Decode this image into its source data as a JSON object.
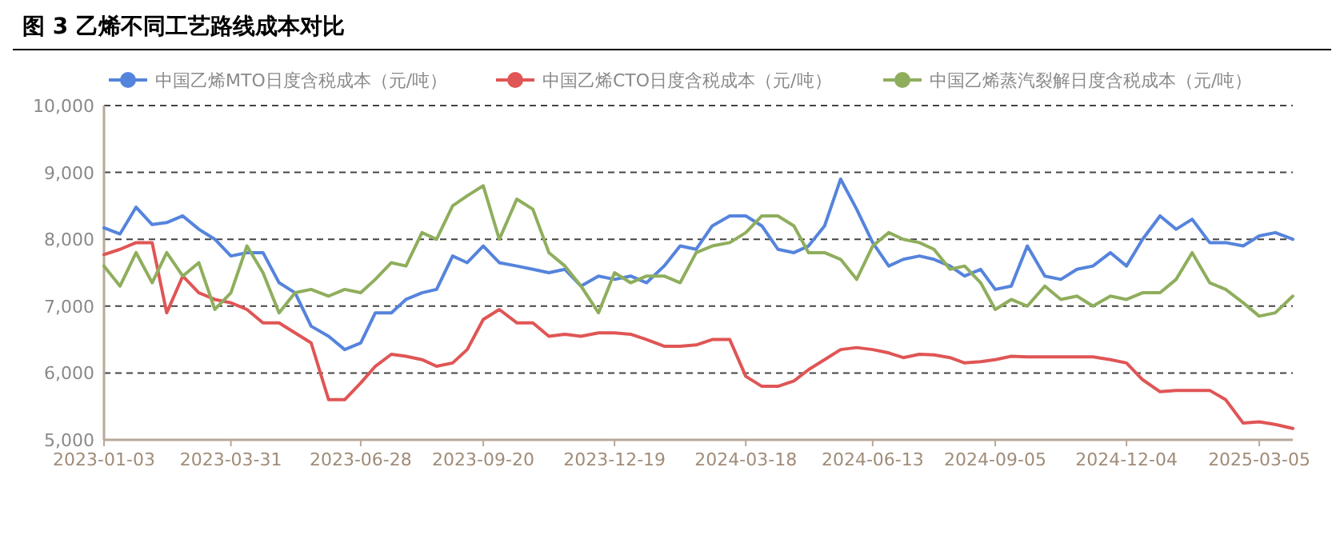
{
  "chart_data": {
    "type": "line",
    "title": "图 3  乙烯不同工艺路线成本对比",
    "x": [
      "2023-01-03",
      "2023-01-14",
      "2023-01-25",
      "2023-02-05",
      "2023-02-15",
      "2023-02-26",
      "2023-03-09",
      "2023-03-20",
      "2023-03-31",
      "2023-04-11",
      "2023-04-22",
      "2023-05-03",
      "2023-05-14",
      "2023-05-25",
      "2023-06-06",
      "2023-06-17",
      "2023-06-28",
      "2023-07-08",
      "2023-07-19",
      "2023-07-29",
      "2023-08-09",
      "2023-08-19",
      "2023-08-30",
      "2023-09-09",
      "2023-09-20",
      "2023-10-01",
      "2023-10-13",
      "2023-10-24",
      "2023-11-04",
      "2023-11-15",
      "2023-11-26",
      "2023-12-08",
      "2023-12-19",
      "2023-12-30",
      "2024-01-10",
      "2024-01-22",
      "2024-02-02",
      "2024-02-13",
      "2024-02-24",
      "2024-03-07",
      "2024-03-18",
      "2024-03-29",
      "2024-04-09",
      "2024-04-20",
      "2024-04-30",
      "2024-05-11",
      "2024-05-22",
      "2024-06-02",
      "2024-06-13",
      "2024-06-24",
      "2024-07-04",
      "2024-07-15",
      "2024-07-25",
      "2024-08-05",
      "2024-08-15",
      "2024-08-26",
      "2024-09-05",
      "2024-09-16",
      "2024-09-27",
      "2024-10-09",
      "2024-10-20",
      "2024-10-31",
      "2024-11-11",
      "2024-11-23",
      "2024-12-04",
      "2024-12-15",
      "2024-12-27",
      "2025-01-07",
      "2025-01-18",
      "2025-01-30",
      "2025-02-10",
      "2025-02-22",
      "2025-03-05",
      "2025-03-16",
      "2025-03-28"
    ],
    "series": [
      {
        "name": "中国乙烯MTO日度含税成本（元/吨）",
        "color": "#5584dc",
        "values": [
          8170,
          8080,
          8480,
          8220,
          8250,
          8350,
          8150,
          8000,
          7750,
          7800,
          7800,
          7350,
          7200,
          6700,
          6550,
          6350,
          6450,
          6900,
          6900,
          7100,
          7200,
          7250,
          7750,
          7650,
          7900,
          7650,
          7600,
          7550,
          7500,
          7550,
          7300,
          7450,
          7400,
          7450,
          7350,
          7600,
          7900,
          7850,
          8200,
          8350,
          8350,
          8200,
          7850,
          7800,
          7900,
          8200,
          8900,
          8450,
          7950,
          7600,
          7700,
          7750,
          7700,
          7600,
          7450,
          7550,
          7250,
          7300,
          7900,
          7450,
          7400,
          7550,
          7600,
          7800,
          7600,
          8000,
          8350,
          8150,
          8300,
          7950,
          7950,
          7900,
          8050,
          8100,
          8000
        ]
      },
      {
        "name": "中国乙烯CTO日度含税成本（元/吨）",
        "color": "#e05555",
        "values": [
          7770,
          7850,
          7950,
          7950,
          6900,
          7450,
          7200,
          7100,
          7050,
          6950,
          6750,
          6750,
          6600,
          6450,
          5600,
          5600,
          5850,
          6100,
          6280,
          6250,
          6200,
          6100,
          6150,
          6350,
          6800,
          6950,
          6750,
          6750,
          6550,
          6580,
          6550,
          6600,
          6600,
          6580,
          6500,
          6400,
          6400,
          6420,
          6500,
          6500,
          5950,
          5800,
          5800,
          5880,
          6050,
          6200,
          6350,
          6380,
          6350,
          6300,
          6230,
          6280,
          6270,
          6230,
          6150,
          6170,
          6200,
          6250,
          6240,
          6240,
          6240,
          6240,
          6240,
          6200,
          6150,
          5900,
          5720,
          5740,
          5740,
          5740,
          5600,
          5250,
          5270,
          5230,
          5170
        ]
      },
      {
        "name": "中国乙烯蒸汽裂解日度含税成本（元/吨）",
        "color": "#8fae5d",
        "values": [
          7600,
          7300,
          7800,
          7350,
          7800,
          7450,
          7650,
          6950,
          7200,
          7900,
          7500,
          6900,
          7200,
          7250,
          7150,
          7250,
          7200,
          7400,
          7650,
          7600,
          8100,
          8000,
          8500,
          8650,
          8800,
          8000,
          8600,
          8450,
          7800,
          7600,
          7300,
          6900,
          7500,
          7350,
          7450,
          7450,
          7350,
          7800,
          7900,
          7950,
          8100,
          8350,
          8350,
          8200,
          7800,
          7800,
          7700,
          7400,
          7900,
          8100,
          8000,
          7950,
          7850,
          7550,
          7600,
          7350,
          6950,
          7100,
          7000,
          7300,
          7100,
          7150,
          7000,
          7150,
          7100,
          7200,
          7200,
          7400,
          7800,
          7350,
          7250,
          7050,
          6850,
          6900,
          7150
        ]
      }
    ],
    "xlim": [
      "2023-01-03",
      "2025-03-28"
    ],
    "xticks": [
      {
        "value": "2023-01-03",
        "label": "2023-01-03"
      },
      {
        "value": "2023-03-31",
        "label": "2023-03-31"
      },
      {
        "value": "2023-06-28",
        "label": "2023-06-28"
      },
      {
        "value": "2023-09-20",
        "label": "2023-09-20"
      },
      {
        "value": "2023-12-19",
        "label": "2023-12-19"
      },
      {
        "value": "2024-03-18",
        "label": "2024-03-18"
      },
      {
        "value": "2024-06-13",
        "label": "2024-06-13"
      },
      {
        "value": "2024-09-05",
        "label": "2024-09-05"
      },
      {
        "value": "2024-12-04",
        "label": "2024-12-04"
      },
      {
        "value": "2025-03-05",
        "label": "2025-03-05"
      }
    ],
    "ylim": [
      5000,
      10000
    ],
    "yticks": [
      {
        "value": 5000,
        "label": "5,000"
      },
      {
        "value": 6000,
        "label": "6,000"
      },
      {
        "value": 7000,
        "label": "7,000"
      },
      {
        "value": 8000,
        "label": "8,000"
      },
      {
        "value": 9000,
        "label": "9,000"
      },
      {
        "value": 10000,
        "label": "10,000"
      }
    ],
    "grid": "y",
    "legend": "top",
    "marker": "none",
    "line_style": "solid"
  }
}
